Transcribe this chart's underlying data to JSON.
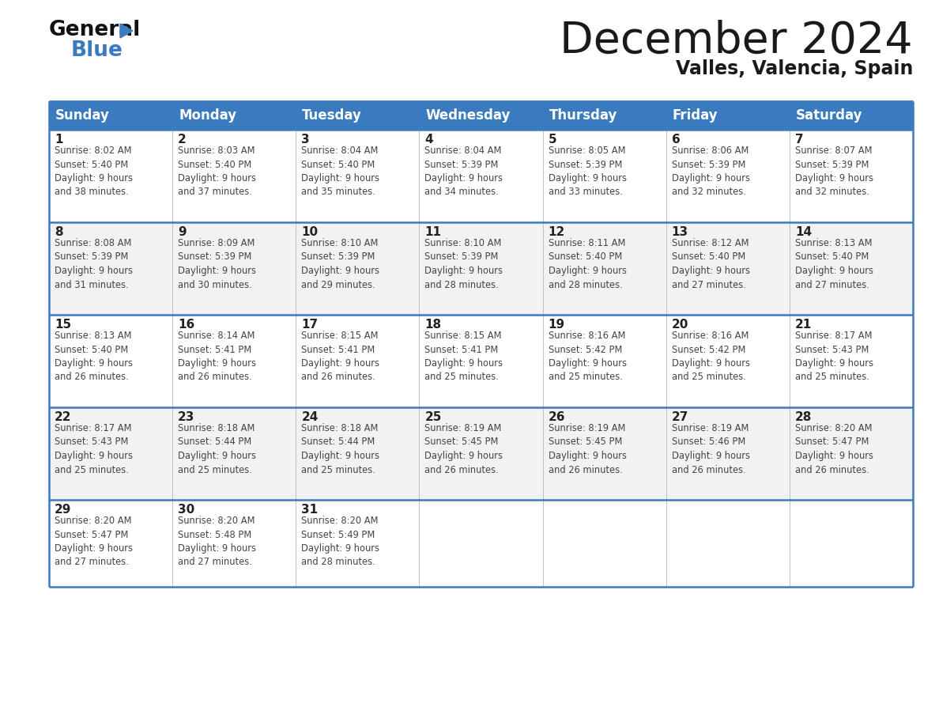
{
  "title": "December 2024",
  "subtitle": "Valles, Valencia, Spain",
  "header_color": "#3a7abf",
  "header_text_color": "#ffffff",
  "cell_bg_white": "#ffffff",
  "cell_bg_gray": "#f2f2f2",
  "border_color": "#3a7abf",
  "thin_border_color": "#b0b8c8",
  "text_color": "#333333",
  "days_of_week": [
    "Sunday",
    "Monday",
    "Tuesday",
    "Wednesday",
    "Thursday",
    "Friday",
    "Saturday"
  ],
  "calendar_data": [
    [
      {
        "day": 1,
        "sunrise": "8:02 AM",
        "sunset": "5:40 PM",
        "daylight": "9 hours\nand 38 minutes."
      },
      {
        "day": 2,
        "sunrise": "8:03 AM",
        "sunset": "5:40 PM",
        "daylight": "9 hours\nand 37 minutes."
      },
      {
        "day": 3,
        "sunrise": "8:04 AM",
        "sunset": "5:40 PM",
        "daylight": "9 hours\nand 35 minutes."
      },
      {
        "day": 4,
        "sunrise": "8:04 AM",
        "sunset": "5:39 PM",
        "daylight": "9 hours\nand 34 minutes."
      },
      {
        "day": 5,
        "sunrise": "8:05 AM",
        "sunset": "5:39 PM",
        "daylight": "9 hours\nand 33 minutes."
      },
      {
        "day": 6,
        "sunrise": "8:06 AM",
        "sunset": "5:39 PM",
        "daylight": "9 hours\nand 32 minutes."
      },
      {
        "day": 7,
        "sunrise": "8:07 AM",
        "sunset": "5:39 PM",
        "daylight": "9 hours\nand 32 minutes."
      }
    ],
    [
      {
        "day": 8,
        "sunrise": "8:08 AM",
        "sunset": "5:39 PM",
        "daylight": "9 hours\nand 31 minutes."
      },
      {
        "day": 9,
        "sunrise": "8:09 AM",
        "sunset": "5:39 PM",
        "daylight": "9 hours\nand 30 minutes."
      },
      {
        "day": 10,
        "sunrise": "8:10 AM",
        "sunset": "5:39 PM",
        "daylight": "9 hours\nand 29 minutes."
      },
      {
        "day": 11,
        "sunrise": "8:10 AM",
        "sunset": "5:39 PM",
        "daylight": "9 hours\nand 28 minutes."
      },
      {
        "day": 12,
        "sunrise": "8:11 AM",
        "sunset": "5:40 PM",
        "daylight": "9 hours\nand 28 minutes."
      },
      {
        "day": 13,
        "sunrise": "8:12 AM",
        "sunset": "5:40 PM",
        "daylight": "9 hours\nand 27 minutes."
      },
      {
        "day": 14,
        "sunrise": "8:13 AM",
        "sunset": "5:40 PM",
        "daylight": "9 hours\nand 27 minutes."
      }
    ],
    [
      {
        "day": 15,
        "sunrise": "8:13 AM",
        "sunset": "5:40 PM",
        "daylight": "9 hours\nand 26 minutes."
      },
      {
        "day": 16,
        "sunrise": "8:14 AM",
        "sunset": "5:41 PM",
        "daylight": "9 hours\nand 26 minutes."
      },
      {
        "day": 17,
        "sunrise": "8:15 AM",
        "sunset": "5:41 PM",
        "daylight": "9 hours\nand 26 minutes."
      },
      {
        "day": 18,
        "sunrise": "8:15 AM",
        "sunset": "5:41 PM",
        "daylight": "9 hours\nand 25 minutes."
      },
      {
        "day": 19,
        "sunrise": "8:16 AM",
        "sunset": "5:42 PM",
        "daylight": "9 hours\nand 25 minutes."
      },
      {
        "day": 20,
        "sunrise": "8:16 AM",
        "sunset": "5:42 PM",
        "daylight": "9 hours\nand 25 minutes."
      },
      {
        "day": 21,
        "sunrise": "8:17 AM",
        "sunset": "5:43 PM",
        "daylight": "9 hours\nand 25 minutes."
      }
    ],
    [
      {
        "day": 22,
        "sunrise": "8:17 AM",
        "sunset": "5:43 PM",
        "daylight": "9 hours\nand 25 minutes."
      },
      {
        "day": 23,
        "sunrise": "8:18 AM",
        "sunset": "5:44 PM",
        "daylight": "9 hours\nand 25 minutes."
      },
      {
        "day": 24,
        "sunrise": "8:18 AM",
        "sunset": "5:44 PM",
        "daylight": "9 hours\nand 25 minutes."
      },
      {
        "day": 25,
        "sunrise": "8:19 AM",
        "sunset": "5:45 PM",
        "daylight": "9 hours\nand 26 minutes."
      },
      {
        "day": 26,
        "sunrise": "8:19 AM",
        "sunset": "5:45 PM",
        "daylight": "9 hours\nand 26 minutes."
      },
      {
        "day": 27,
        "sunrise": "8:19 AM",
        "sunset": "5:46 PM",
        "daylight": "9 hours\nand 26 minutes."
      },
      {
        "day": 28,
        "sunrise": "8:20 AM",
        "sunset": "5:47 PM",
        "daylight": "9 hours\nand 26 minutes."
      }
    ],
    [
      {
        "day": 29,
        "sunrise": "8:20 AM",
        "sunset": "5:47 PM",
        "daylight": "9 hours\nand 27 minutes."
      },
      {
        "day": 30,
        "sunrise": "8:20 AM",
        "sunset": "5:48 PM",
        "daylight": "9 hours\nand 27 minutes."
      },
      {
        "day": 31,
        "sunrise": "8:20 AM",
        "sunset": "5:49 PM",
        "daylight": "9 hours\nand 28 minutes."
      },
      null,
      null,
      null,
      null
    ]
  ]
}
